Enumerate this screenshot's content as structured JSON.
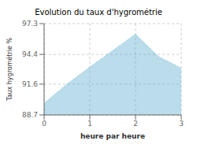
{
  "chart_data": {
    "type": "area",
    "title": "Evolution du taux d'hygrométrie",
    "x_label": "heure par heure",
    "y_label": "Taux hygrométrie %",
    "x": [
      0,
      0.5,
      1,
      2,
      2.5,
      3
    ],
    "values": [
      89.8,
      91.6,
      93.2,
      96.3,
      94.2,
      93.1
    ],
    "xlim": [
      0,
      3
    ],
    "ylim": [
      88.7,
      97.3
    ],
    "xticks": [
      0,
      1,
      2,
      3
    ],
    "yticks": [
      88.7,
      91.6,
      94.4,
      97.3
    ],
    "color": "#55aacc",
    "line_style": "dotted",
    "grid": true
  }
}
